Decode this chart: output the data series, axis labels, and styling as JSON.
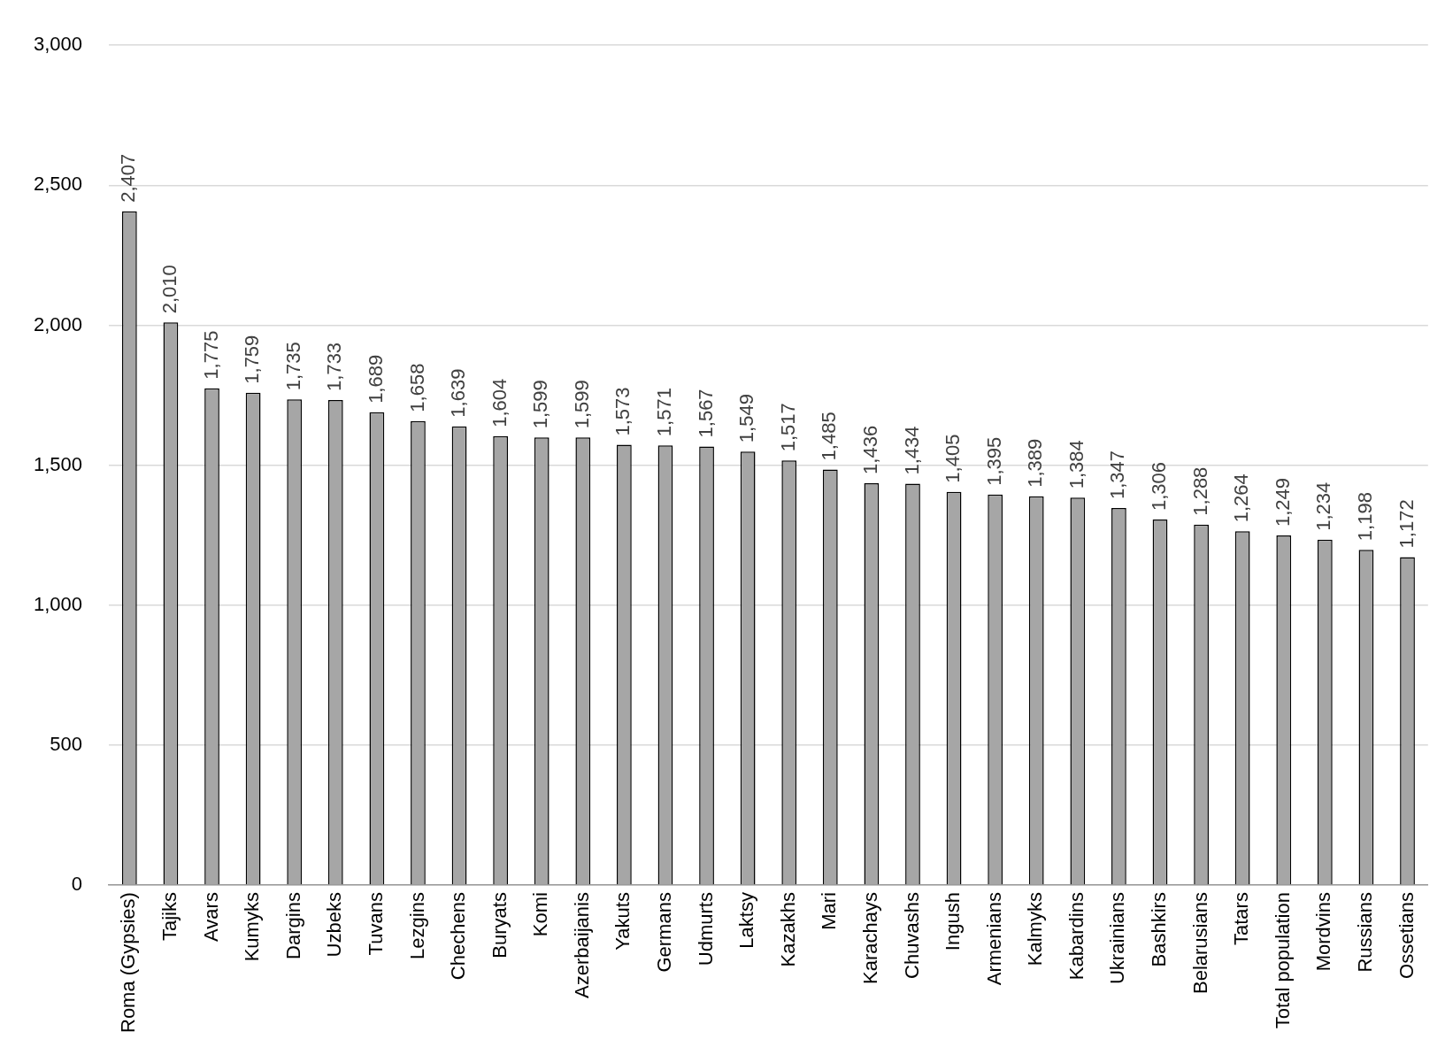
{
  "chart_data": {
    "type": "bar",
    "categories": [
      "Roma (Gypsies)",
      "Tajiks",
      "Avars",
      "Kumyks",
      "Dargins",
      "Uzbeks",
      "Tuvans",
      "Lezgins",
      "Chechens",
      "Buryats",
      "Komi",
      "Azerbaijanis",
      "Yakuts",
      "Germans",
      "Udmurts",
      "Laktsy",
      "Kazakhs",
      "Mari",
      "Karachays",
      "Chuvashs",
      "Ingush",
      "Armenians",
      "Kalmyks",
      "Kabardins",
      "Ukrainians",
      "Bashkirs",
      "Belarusians",
      "Tatars",
      "Total population",
      "Mordvins",
      "Russians",
      "Ossetians"
    ],
    "values": [
      2407,
      2010,
      1775,
      1759,
      1735,
      1733,
      1689,
      1658,
      1639,
      1604,
      1599,
      1599,
      1573,
      1571,
      1567,
      1549,
      1517,
      1485,
      1436,
      1434,
      1405,
      1395,
      1389,
      1384,
      1347,
      1306,
      1288,
      1264,
      1249,
      1234,
      1198,
      1172
    ],
    "value_labels": [
      "2,407",
      "2,010",
      "1,775",
      "1,759",
      "1,735",
      "1,733",
      "1,689",
      "1,658",
      "1,639",
      "1,604",
      "1,599",
      "1,599",
      "1,573",
      "1,571",
      "1,567",
      "1,549",
      "1,517",
      "1,485",
      "1,436",
      "1,434",
      "1,405",
      "1,395",
      "1,389",
      "1,384",
      "1,347",
      "1,306",
      "1,288",
      "1,264",
      "1,249",
      "1,234",
      "1,198",
      "1,172"
    ],
    "color": "#a6a6a6",
    "ylim": [
      0,
      3000
    ],
    "yticks": [
      0,
      500,
      {
        "value": 1000,
        "label": "1,000"
      },
      {
        "value": 1500,
        "label": "1,500"
      },
      {
        "value": 2000,
        "label": "2,000"
      },
      {
        "value": 2500,
        "label": "2,500"
      },
      {
        "value": 3000,
        "label": "3,000"
      }
    ],
    "grid": "y"
  }
}
